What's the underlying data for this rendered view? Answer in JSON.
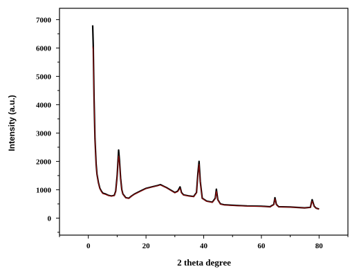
{
  "chart_data": {
    "type": "line",
    "title": "",
    "xlabel": "2 theta degree",
    "ylabel": "Intensity (a.u.)",
    "xlim": [
      -10,
      90
    ],
    "ylim": [
      -600,
      7400
    ],
    "x_ticks": [
      0,
      20,
      40,
      60,
      80
    ],
    "y_ticks": [
      0,
      1000,
      2000,
      3000,
      4000,
      5000,
      6000,
      7000
    ],
    "x_tick_labels": [
      "0",
      "20",
      "40",
      "60",
      "80"
    ],
    "y_tick_labels": [
      "0",
      "1000",
      "2000",
      "3000",
      "4000",
      "5000",
      "6000",
      "7000"
    ],
    "grid": false,
    "legend": false,
    "series": [
      {
        "color": "#000000",
        "x": [
          1.5,
          1.7,
          2.0,
          2.3,
          2.7,
          3.0,
          3.5,
          4.0,
          4.5,
          5.0,
          6.0,
          7.0,
          8.0,
          9.0,
          9.5,
          10.0,
          10.5,
          10.8,
          11.2,
          11.6,
          12.0,
          13.0,
          14.0,
          15.0,
          16.0,
          18.0,
          20.0,
          22.0,
          24.0,
          25.0,
          26.0,
          27.0,
          28.0,
          30.0,
          31.0,
          31.8,
          32.3,
          33.0,
          35.0,
          36.5,
          37.5,
          38.0,
          38.4,
          38.8,
          39.5,
          41.0,
          43.0,
          44.0,
          44.4,
          44.9,
          45.8,
          47.0,
          50.0,
          55.0,
          60.0,
          63.0,
          64.3,
          64.7,
          65.2,
          66.0,
          70.0,
          75.0,
          77.0,
          77.6,
          78.3,
          79.0,
          80.0
        ],
        "y": [
          6800,
          6100,
          4200,
          2800,
          1900,
          1550,
          1250,
          1050,
          950,
          880,
          850,
          800,
          780,
          800,
          950,
          1500,
          2400,
          2050,
          1400,
          1000,
          850,
          720,
          700,
          780,
          850,
          950,
          1050,
          1100,
          1150,
          1180,
          1130,
          1080,
          1020,
          900,
          950,
          1100,
          900,
          820,
          780,
          760,
          900,
          1600,
          2000,
          1300,
          700,
          600,
          560,
          700,
          1020,
          650,
          500,
          470,
          450,
          430,
          420,
          400,
          480,
          720,
          480,
          400,
          390,
          360,
          380,
          650,
          420,
          350,
          320
        ]
      },
      {
        "color": "#a01010",
        "x": [
          1.5,
          1.7,
          2.0,
          2.3,
          2.7,
          3.0,
          3.5,
          4.0,
          4.5,
          5.0,
          6.0,
          7.0,
          8.0,
          9.0,
          9.5,
          10.0,
          10.5,
          10.8,
          11.2,
          11.6,
          12.0,
          13.0,
          14.0,
          15.0,
          16.0,
          18.0,
          20.0,
          22.0,
          24.0,
          25.0,
          26.0,
          27.0,
          28.0,
          30.0,
          31.0,
          31.8,
          32.3,
          33.0,
          35.0,
          36.5,
          37.5,
          38.0,
          38.4,
          38.8,
          39.5,
          41.0,
          43.0,
          44.0,
          44.4,
          44.9,
          45.8,
          47.0,
          50.0,
          55.0,
          60.0,
          63.0,
          64.3,
          64.7,
          65.2,
          66.0,
          70.0,
          75.0,
          77.0,
          77.6,
          78.3,
          79.0,
          80.0
        ],
        "y": [
          6050,
          5900,
          4100,
          2750,
          1880,
          1530,
          1230,
          1030,
          930,
          860,
          830,
          790,
          770,
          790,
          930,
          1450,
          2200,
          1950,
          1370,
          980,
          840,
          710,
          690,
          770,
          840,
          940,
          1040,
          1090,
          1140,
          1160,
          1120,
          1070,
          1010,
          890,
          930,
          1050,
          880,
          810,
          770,
          750,
          880,
          1500,
          1900,
          1250,
          690,
          590,
          550,
          680,
          950,
          640,
          490,
          460,
          440,
          420,
          410,
          395,
          460,
          680,
          470,
          395,
          385,
          355,
          375,
          600,
          410,
          345,
          315
        ]
      }
    ]
  }
}
